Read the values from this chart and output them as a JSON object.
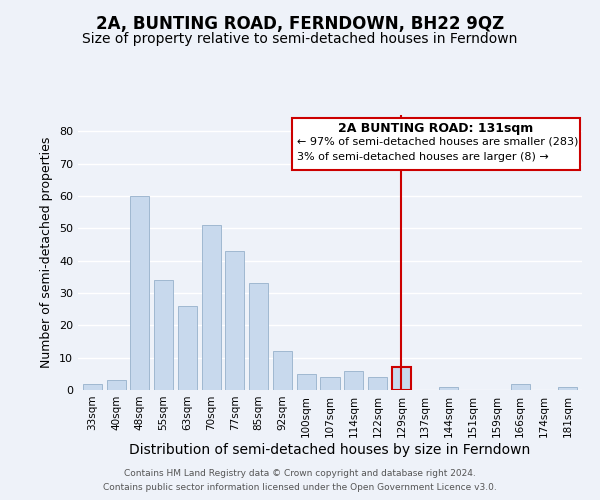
{
  "title": "2A, BUNTING ROAD, FERNDOWN, BH22 9QZ",
  "subtitle": "Size of property relative to semi-detached houses in Ferndown",
  "xlabel": "Distribution of semi-detached houses by size in Ferndown",
  "ylabel": "Number of semi-detached properties",
  "categories": [
    "33sqm",
    "40sqm",
    "48sqm",
    "55sqm",
    "63sqm",
    "70sqm",
    "77sqm",
    "85sqm",
    "92sqm",
    "100sqm",
    "107sqm",
    "114sqm",
    "122sqm",
    "129sqm",
    "137sqm",
    "144sqm",
    "151sqm",
    "159sqm",
    "166sqm",
    "174sqm",
    "181sqm"
  ],
  "values": [
    2,
    3,
    60,
    34,
    26,
    51,
    43,
    33,
    12,
    5,
    4,
    6,
    4,
    7,
    0,
    1,
    0,
    0,
    2,
    0,
    1
  ],
  "bar_color": "#c8d9ed",
  "bar_edge_color": "#a0b8d0",
  "highlight_bar_index": 13,
  "highlight_bar_edge_color": "#cc0000",
  "vline_color": "#cc0000",
  "ylim": [
    0,
    85
  ],
  "yticks": [
    0,
    10,
    20,
    30,
    40,
    50,
    60,
    70,
    80
  ],
  "annotation_title": "2A BUNTING ROAD: 131sqm",
  "annotation_line1": "← 97% of semi-detached houses are smaller (283)",
  "annotation_line2": "3% of semi-detached houses are larger (8) →",
  "annotation_box_edge_color": "#cc0000",
  "footer_line1": "Contains HM Land Registry data © Crown copyright and database right 2024.",
  "footer_line2": "Contains public sector information licensed under the Open Government Licence v3.0.",
  "bg_color": "#eef2f9",
  "title_fontsize": 12,
  "subtitle_fontsize": 10,
  "xlabel_fontsize": 10,
  "ylabel_fontsize": 9
}
